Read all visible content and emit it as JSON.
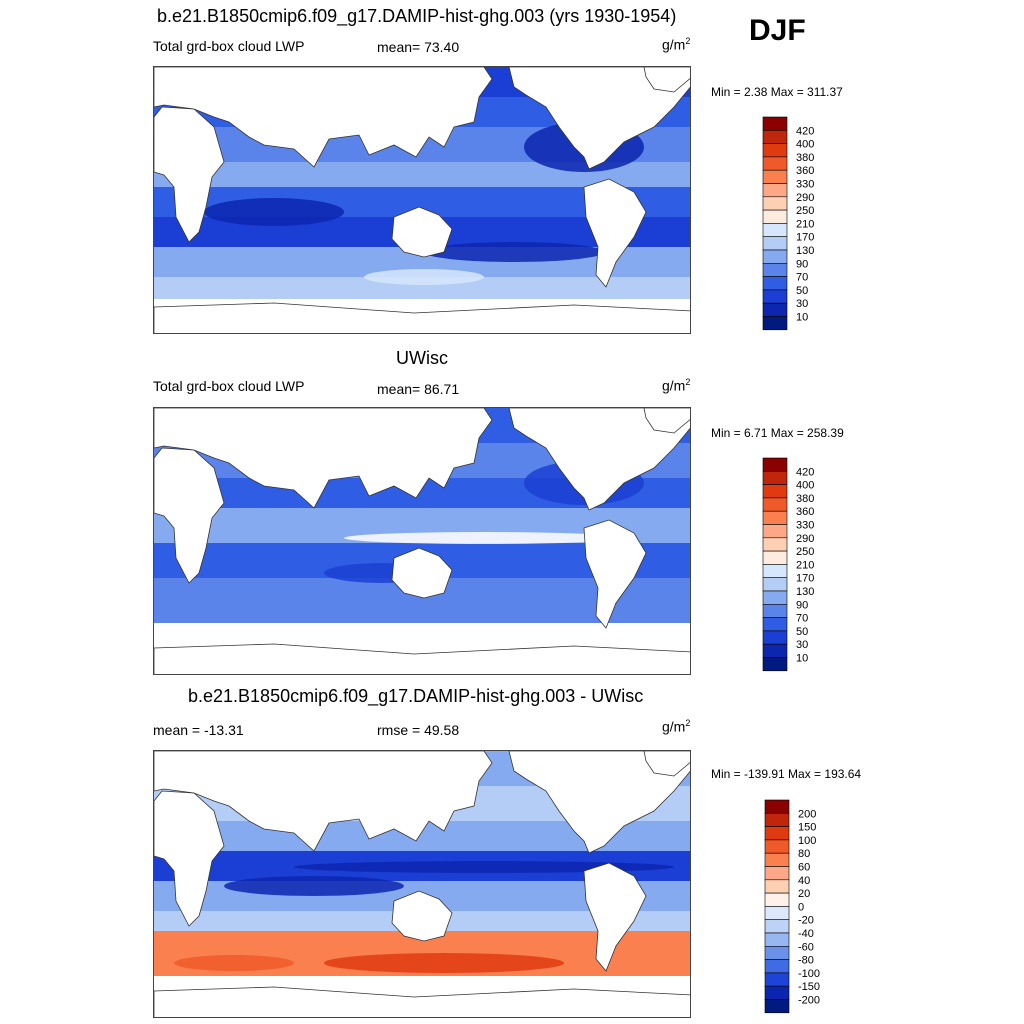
{
  "season": "DJF",
  "panels": [
    {
      "title": "b.e21.B1850cmip6.f09_g17.DAMIP-hist-ghg.003 (yrs 1930-1954)",
      "left_label": "Total grd-box cloud LWP",
      "center_label": "mean=  73.40",
      "units": "g/m",
      "units_exp": "2",
      "minmax": "Min =   2.38 Max = 311.37"
    },
    {
      "title": "UWisc",
      "left_label": "Total grd-box cloud LWP",
      "center_label": "mean=  86.71",
      "units": "g/m",
      "units_exp": "2",
      "minmax": "Min =   6.71 Max = 258.39"
    },
    {
      "title": "b.e21.B1850cmip6.f09_g17.DAMIP-hist-ghg.003 - UWisc",
      "left_label": "mean = -13.31",
      "center_label": "rmse =  49.58",
      "units": "g/m",
      "units_exp": "2",
      "minmax": "Min = -139.91 Max = 193.64"
    }
  ],
  "chart_data": [
    {
      "type": "heatmap",
      "title": "b.e21.B1850cmip6.f09_g17.DAMIP-hist-ghg.003 (yrs 1930-1954)",
      "variable": "Total grd-box cloud LWP",
      "units": "g/m^2",
      "mean": 73.4,
      "min": 2.38,
      "max": 311.37,
      "colorbar_levels": [
        "420",
        "400",
        "380",
        "360",
        "330",
        "290",
        "250",
        "210",
        "170",
        "130",
        "90",
        "70",
        "50",
        "30",
        "10"
      ],
      "colorbar_colors": [
        "#8b0000",
        "#c0260c",
        "#e03b10",
        "#f05a2a",
        "#fa8050",
        "#fca888",
        "#fdd0b4",
        "#fdebe0",
        "#d6e6fb",
        "#b4cdf6",
        "#86aaf0",
        "#5a84ea",
        "#2f5ee4",
        "#1b3fd4",
        "#0c26b0",
        "#001a80"
      ]
    },
    {
      "type": "heatmap",
      "title": "UWisc",
      "variable": "Total grd-box cloud LWP",
      "units": "g/m^2",
      "mean": 86.71,
      "min": 6.71,
      "max": 258.39,
      "colorbar_levels": [
        "420",
        "400",
        "380",
        "360",
        "330",
        "290",
        "250",
        "210",
        "170",
        "130",
        "90",
        "70",
        "50",
        "30",
        "10"
      ],
      "colorbar_colors": [
        "#8b0000",
        "#c0260c",
        "#e03b10",
        "#f05a2a",
        "#fa8050",
        "#fca888",
        "#fdd0b4",
        "#fdebe0",
        "#d6e6fb",
        "#b4cdf6",
        "#86aaf0",
        "#5a84ea",
        "#2f5ee4",
        "#1b3fd4",
        "#0c26b0",
        "#001a80"
      ]
    },
    {
      "type": "heatmap",
      "title": "b.e21.B1850cmip6.f09_g17.DAMIP-hist-ghg.003 - UWisc",
      "units": "g/m^2",
      "mean": -13.31,
      "rmse": 49.58,
      "min": -139.91,
      "max": 193.64,
      "colorbar_levels": [
        "200",
        "150",
        "100",
        "80",
        "60",
        "40",
        "20",
        "0",
        "-20",
        "-40",
        "-60",
        "-80",
        "-100",
        "-150",
        "-200"
      ],
      "colorbar_colors": [
        "#8b0000",
        "#c0260c",
        "#e03b10",
        "#f05a2a",
        "#fa8050",
        "#fca888",
        "#fdd0b4",
        "#fdf1ea",
        "#dde9fb",
        "#bcd3f7",
        "#96b7f2",
        "#6b92eb",
        "#3f6be4",
        "#1d44d6",
        "#0a26b0",
        "#001a80"
      ]
    }
  ]
}
